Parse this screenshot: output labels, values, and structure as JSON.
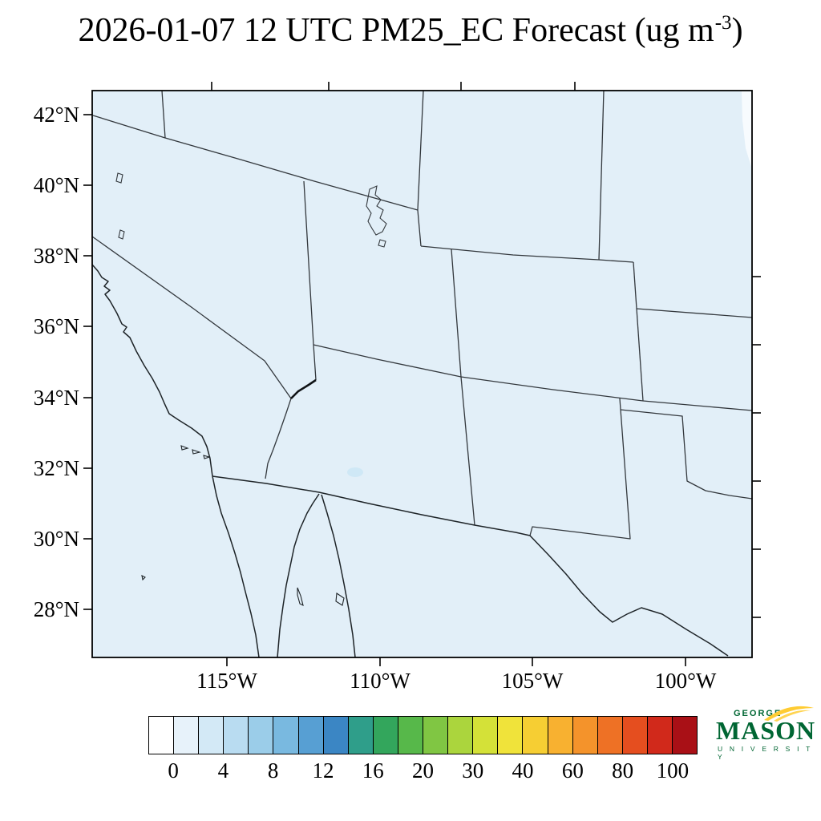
{
  "title": {
    "main": "2026-01-07 12 UTC PM25_EC Forecast (ug m",
    "sup": "-3",
    "close": ")"
  },
  "axes": {
    "lat_labels": [
      "42°N",
      "40°N",
      "38°N",
      "36°N",
      "34°N",
      "32°N",
      "30°N",
      "28°N"
    ],
    "lon_labels": [
      "115°W",
      "110°W",
      "105°W",
      "100°W"
    ]
  },
  "colorbar": {
    "tick_labels": [
      "0",
      "4",
      "8",
      "12",
      "16",
      "20",
      "30",
      "40",
      "60",
      "80",
      "100"
    ],
    "colors": [
      "#ffffff",
      "#e7f2fa",
      "#d3e9f6",
      "#b9dcf1",
      "#9bcde9",
      "#79b9e0",
      "#579fd3",
      "#3b86c4",
      "#2f9e8a",
      "#33a65c",
      "#57b84a",
      "#80c643",
      "#abd53d",
      "#d4e138",
      "#f0e33a",
      "#f6ce33",
      "#f8b130",
      "#f4932b",
      "#ee7125",
      "#e54e1f",
      "#d1291b",
      "#a91016"
    ],
    "outline_color": "#000000"
  },
  "map": {
    "background_color": "#e2eff8",
    "state_border_color": "#33383d",
    "coast_color": "#1e2428",
    "low_value_patch_color": "#cfe8f6",
    "edge_patch_color": "#f7fbfe"
  },
  "logo": {
    "top": "GEORGE",
    "name": "MASON",
    "bottom": "U N I V E R S I T Y",
    "green": "#006633",
    "gold": "#FFCC33"
  },
  "chart_data": {
    "type": "heatmap",
    "title": "2026-01-07 12 UTC PM25_EC Forecast (ug m-3)",
    "units": "ug m-3",
    "region": "Southwestern United States and northern Mexico",
    "lat_ticks": [
      42,
      40,
      38,
      36,
      34,
      32,
      30,
      28
    ],
    "lon_ticks_deg_west": [
      115,
      110,
      105,
      100
    ],
    "colorbar_boundaries": [
      0,
      2,
      4,
      6,
      8,
      10,
      12,
      14,
      16,
      18,
      20,
      25,
      30,
      35,
      40,
      50,
      60,
      70,
      80,
      90,
      100
    ],
    "colorbar_labeled_ticks": [
      0,
      4,
      8,
      12,
      16,
      20,
      30,
      40,
      60,
      80,
      100
    ],
    "field_summary": "PM25_EC concentrations near 0-2 ug m-3 (palest blue) across the entire visible domain, with a tiny 2-4 ug m-3 patch in central Arizona and a near-zero white sliver along the upper right domain edge",
    "legend_position": "bottom",
    "grid": false
  }
}
